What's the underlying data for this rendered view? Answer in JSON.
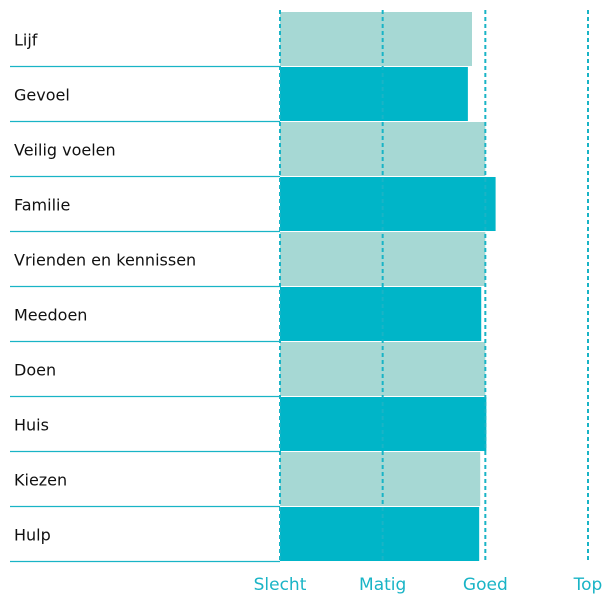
{
  "chart_data": {
    "type": "barh",
    "categories": [
      "Lijf",
      "Gevoel",
      "Veilig voelen",
      "Familie",
      "Vrienden en kennissen",
      "Meedoen",
      "Doen",
      "Huis",
      "Kiezen",
      "Hulp"
    ],
    "values": [
      2.87,
      2.83,
      3.0,
      3.1,
      3.0,
      2.96,
      3.0,
      3.01,
      2.95,
      2.94
    ],
    "colors": [
      "#a6d8d4",
      "#00b5c8",
      "#a6d8d4",
      "#00b5c8",
      "#a6d8d4",
      "#00b5c8",
      "#a6d8d4",
      "#00b5c8",
      "#a6d8d4",
      "#00b5c8"
    ],
    "xlim": [
      1,
      4
    ],
    "xticks": [
      {
        "value": 1,
        "label": "Slecht"
      },
      {
        "value": 2,
        "label": "Matig"
      },
      {
        "value": 3,
        "label": "Goed"
      },
      {
        "value": 4,
        "label": "Top"
      }
    ],
    "grid": true
  }
}
